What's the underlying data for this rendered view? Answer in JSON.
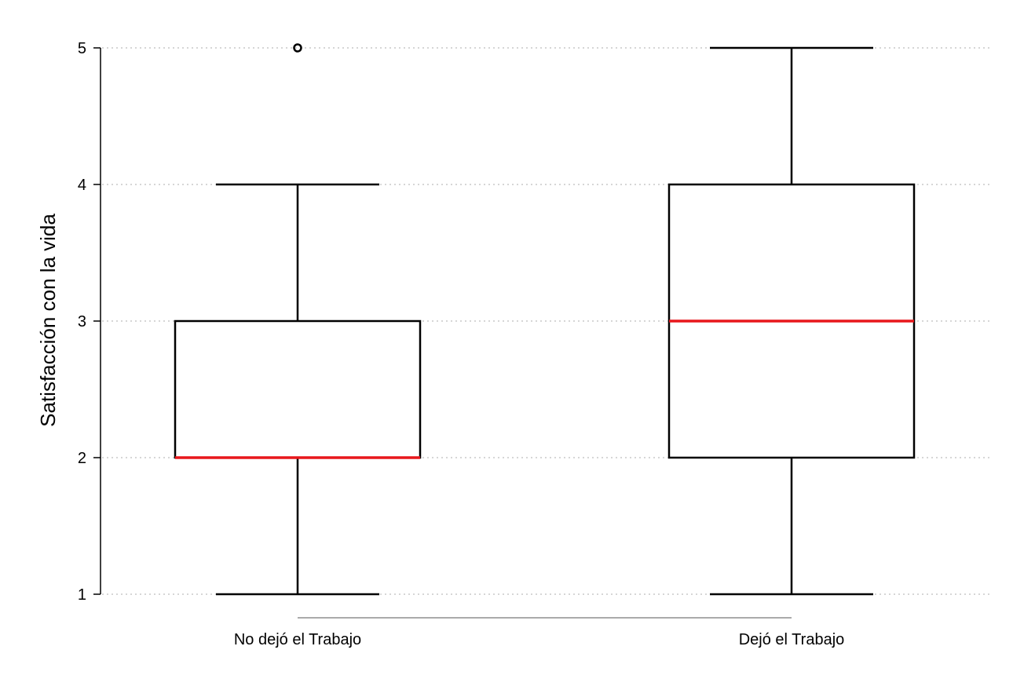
{
  "chart_data": {
    "type": "boxplot",
    "title": "",
    "xlabel": "",
    "ylabel": "Satisfacción con la vida",
    "ylim": [
      1,
      5
    ],
    "yticks": [
      "1",
      "2",
      "3",
      "4",
      "5"
    ],
    "grid": "horizontal dotted",
    "legend": "none",
    "categories": [
      "No dejó el Trabajo",
      "Dejó el Trabajo"
    ],
    "boxes": [
      {
        "category": "No dejó el Trabajo",
        "whisker_low": 1,
        "q1": 2,
        "median": 2,
        "q3": 3,
        "whisker_high": 4,
        "outliers": [
          5
        ]
      },
      {
        "category": "Dejó el Trabajo",
        "whisker_low": 1,
        "q1": 2,
        "median": 3,
        "q3": 4,
        "whisker_high": 5,
        "outliers": []
      }
    ],
    "colors": {
      "median": "#e8171b",
      "box": "#000000",
      "grid": "#c8c8c8",
      "x_axis_line": "#aaaaaa"
    }
  }
}
